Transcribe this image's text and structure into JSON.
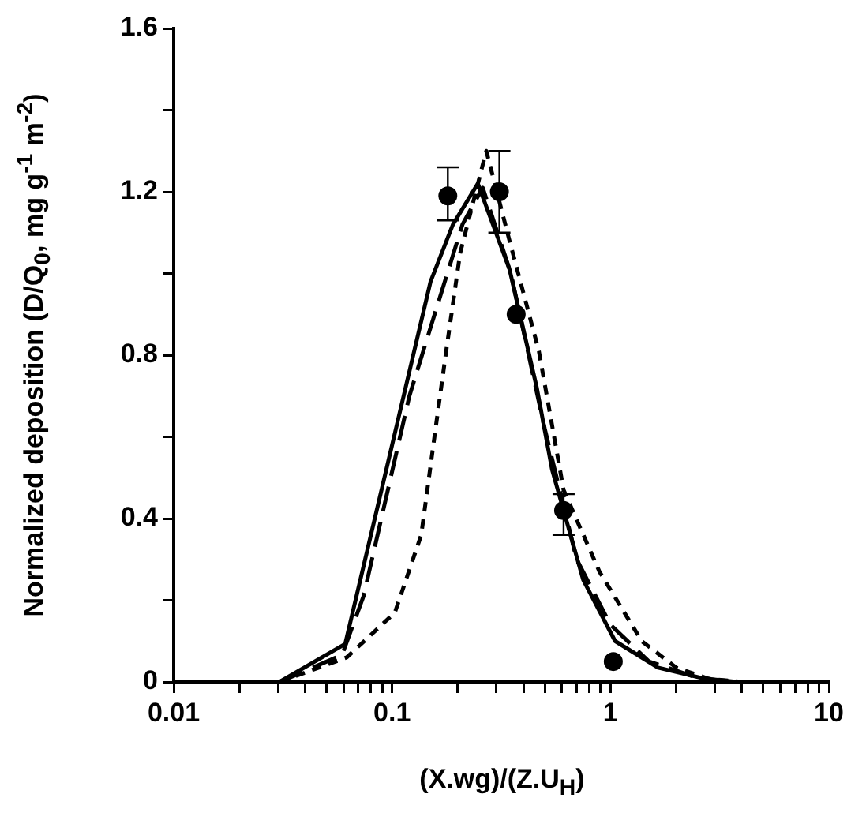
{
  "chart_data": {
    "type": "line",
    "xlabel": "(X.wg)/(Z.U$_{H}$)",
    "ylabel": "Normalized deposition (D/Q$_{0}$, mg g$^{-1}$ m$^{-2}$)",
    "log": "x",
    "grid": false,
    "legend": false,
    "xlim": [
      0.01,
      10
    ],
    "xticks": [
      0.01,
      {
        "value": 0.02,
        "label": null
      },
      {
        "value": 0.03,
        "label": null
      },
      {
        "value": 0.04,
        "label": null
      },
      {
        "value": 0.05,
        "label": null
      },
      {
        "value": 0.06,
        "label": null
      },
      {
        "value": 0.07,
        "label": null
      },
      {
        "value": 0.08,
        "label": null
      },
      {
        "value": 0.09,
        "label": null
      },
      0.1,
      {
        "value": 0.2,
        "label": null
      },
      {
        "value": 0.3,
        "label": null
      },
      {
        "value": 0.4,
        "label": null
      },
      {
        "value": 0.5,
        "label": null
      },
      {
        "value": 0.6,
        "label": null
      },
      {
        "value": 0.7,
        "label": null
      },
      {
        "value": 0.8,
        "label": null
      },
      {
        "value": 0.9,
        "label": null
      },
      1,
      {
        "value": 2,
        "label": null
      },
      {
        "value": 3,
        "label": null
      },
      {
        "value": 4,
        "label": null
      },
      {
        "value": 5,
        "label": null
      },
      {
        "value": 6,
        "label": null
      },
      {
        "value": 7,
        "label": null
      },
      {
        "value": 8,
        "label": null
      },
      {
        "value": 9,
        "label": null
      },
      10
    ],
    "ylim": [
      0,
      1.6
    ],
    "yticks": [
      0,
      {
        "value": 0.2,
        "label": null
      },
      0.4,
      {
        "value": 0.6,
        "label": null
      },
      0.8,
      {
        "value": 1.0,
        "label": null
      },
      1.2,
      {
        "value": 1.4,
        "label": null
      },
      1.6
    ],
    "series": [
      {
        "type": "scatter",
        "color": "#000000",
        "marker": "circle",
        "x": [
          0.18,
          0.31,
          0.37,
          0.61,
          1.03
        ],
        "values": [
          1.19,
          1.2,
          0.9,
          0.42,
          0.05
        ],
        "errors": [
          [
            1.13,
            1.26
          ],
          [
            1.1,
            1.3
          ],
          null,
          [
            0.36,
            0.46
          ],
          null
        ]
      },
      {
        "type": "line",
        "color": "#000000",
        "line_style": "solid",
        "marker": "none",
        "x": [
          0.0305,
          0.061,
          0.1,
          0.15,
          0.19,
          0.247,
          0.345,
          0.46,
          0.54,
          0.75,
          1.05,
          1.65,
          2.7,
          3.8
        ],
        "values": [
          0,
          0.093,
          0.58,
          0.98,
          1.12,
          1.22,
          1.01,
          0.72,
          0.52,
          0.25,
          0.1,
          0.035,
          0.008,
          0
        ]
      },
      {
        "type": "line",
        "color": "#000000",
        "line_style": "dashed",
        "marker": "none",
        "x": [
          0.0305,
          0.059,
          0.074,
          0.12,
          0.21,
          0.26,
          0.35,
          0.5,
          0.7,
          1.0,
          1.5,
          2.5,
          3.6
        ],
        "values": [
          0,
          0.066,
          0.21,
          0.7,
          1.12,
          1.21,
          1.0,
          0.62,
          0.3,
          0.14,
          0.05,
          0.01,
          0
        ]
      },
      {
        "type": "line",
        "color": "#000000",
        "line_style": "dotted",
        "marker": "none",
        "x": [
          0.0305,
          0.062,
          0.103,
          0.136,
          0.16,
          0.178,
          0.205,
          0.27,
          0.345,
          0.47,
          0.61,
          0.89,
          1.39,
          2.0,
          2.8,
          4.0
        ],
        "values": [
          0,
          0.06,
          0.17,
          0.36,
          0.64,
          0.82,
          1.05,
          1.3,
          1.08,
          0.81,
          0.47,
          0.27,
          0.1,
          0.035,
          0.008,
          0
        ]
      }
    ]
  }
}
